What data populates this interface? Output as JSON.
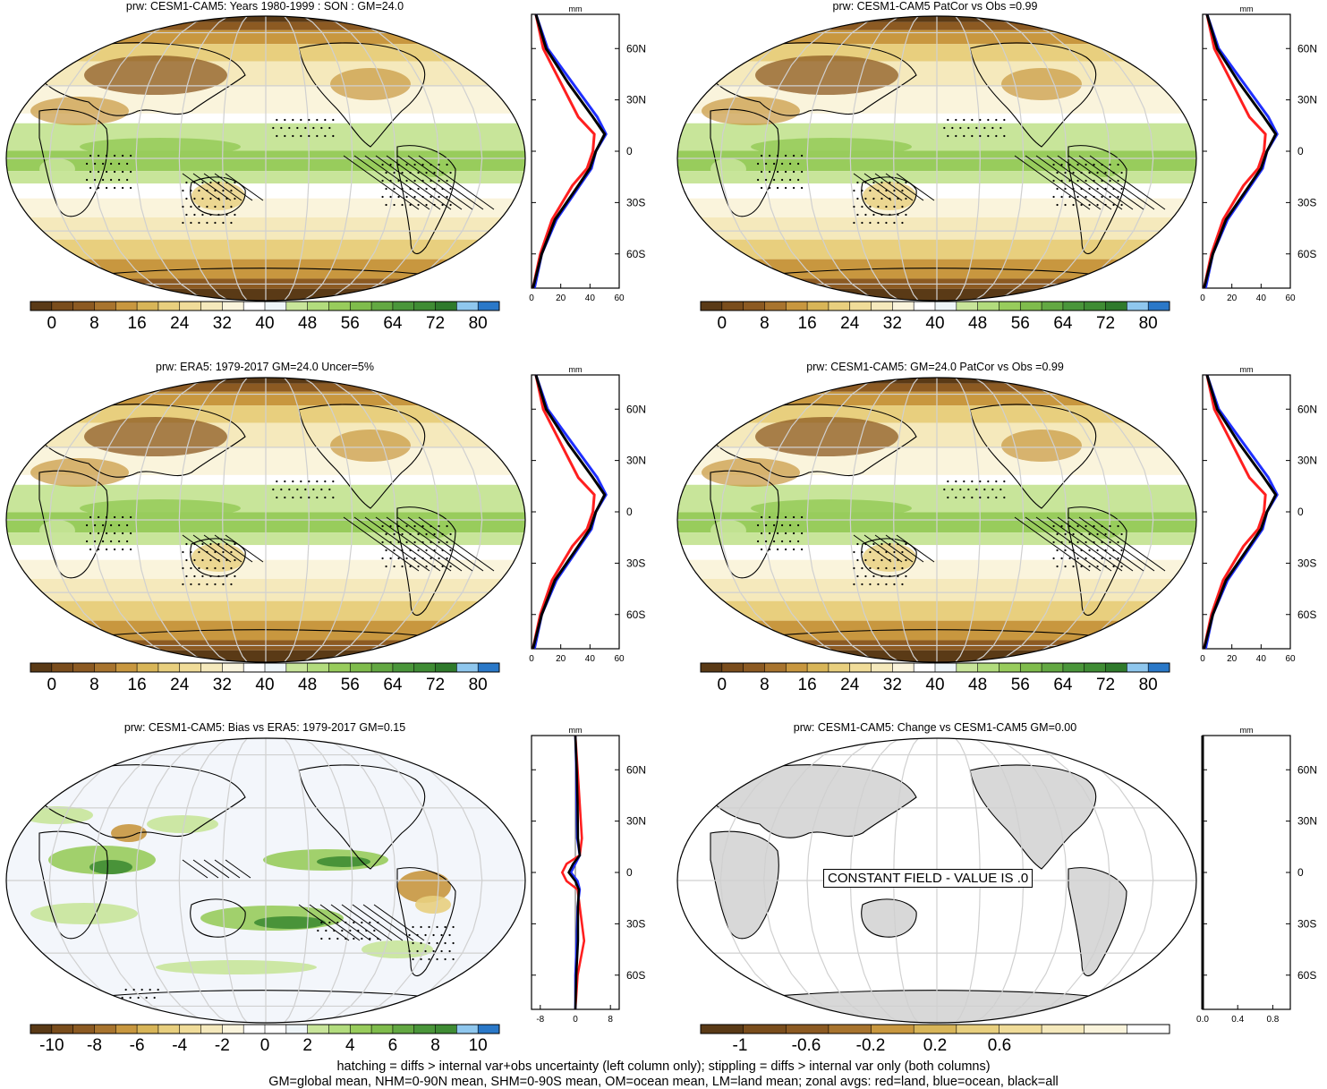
{
  "colors": {
    "brown_dark": "#5a3a16",
    "brown": "#8c5a22",
    "tan": "#c8973f",
    "yellow": "#e8cf7e",
    "cream": "#f5e9bc",
    "white": "#ffffff",
    "light_green": "#c8e59a",
    "green": "#98cc5c",
    "dark_green": "#3f8c34",
    "blue_light": "#8fc7ee",
    "blue": "#2a78c8",
    "zonal_land": "#ff1f1f",
    "zonal_ocean": "#1f2fff",
    "zonal_all": "#000000",
    "land_gray": "#d8d8d8"
  },
  "panels": [
    {
      "id": "p1",
      "title": "prw: CESM1-CAM5: Years 1980-1999 : SON : GM=24.0",
      "cbar": "abs",
      "zonal": "abs"
    },
    {
      "id": "p2",
      "title": "prw: CESM1-CAM5 PatCor vs Obs =0.99",
      "cbar": "abs",
      "zonal": "abs"
    },
    {
      "id": "p3",
      "title": "prw: ERA5: 1979-2017 GM=24.0 Uncer=5%",
      "cbar": "abs",
      "zonal": "abs"
    },
    {
      "id": "p4",
      "title": "prw: CESM1-CAM5: GM=24.0 PatCor vs Obs =0.99",
      "cbar": "abs",
      "zonal": "abs"
    },
    {
      "id": "p5",
      "title": "prw: CESM1-CAM5: Bias vs ERA5: 1979-2017  GM=0.15",
      "cbar": "bias",
      "zonal": "bias"
    },
    {
      "id": "p6",
      "title": "prw: CESM1-CAM5: Change vs CESM1-CAM5 GM=0.00",
      "cbar": "change",
      "zonal": "change",
      "constant_label": "CONSTANT FIELD - VALUE IS .0"
    }
  ],
  "colorbars": {
    "abs": {
      "labels": [
        "0",
        "8",
        "16",
        "24",
        "32",
        "40",
        "48",
        "56",
        "64",
        "72",
        "80"
      ]
    },
    "bias": {
      "labels": [
        "-10",
        "-8",
        "-6",
        "-4",
        "-2",
        "0",
        "2",
        "4",
        "6",
        "8",
        "10"
      ]
    },
    "change": {
      "labels": [
        "-1",
        "-0.6",
        "-0.2",
        "0.2",
        "0.6"
      ]
    }
  },
  "zonal_axes": {
    "unit": "mm",
    "lat_ticks": [
      "60N",
      "30N",
      "0",
      "30S",
      "60S"
    ],
    "abs_x_ticks": [
      "0",
      "20",
      "40",
      "60"
    ],
    "bias_x_ticks": [
      "-8",
      "0",
      "8"
    ],
    "change_x_ticks": [
      "0.0",
      "0.4",
      "0.8"
    ]
  },
  "chart_data": {
    "type": "line",
    "title": "",
    "xlabel": "mm",
    "ylabel": "",
    "series": [
      {
        "name": "land",
        "color": "red",
        "lat": [
          80,
          60,
          40,
          20,
          10,
          0,
          -10,
          -20,
          -40,
          -60,
          -80
        ],
        "values": [
          3,
          8,
          20,
          32,
          43,
          42,
          38,
          28,
          14,
          6,
          1
        ]
      },
      {
        "name": "ocean",
        "color": "blue",
        "lat": [
          80,
          60,
          40,
          20,
          10,
          0,
          -10,
          -20,
          -40,
          -60,
          -80
        ],
        "values": [
          3,
          11,
          28,
          45,
          51,
          44,
          41,
          33,
          17,
          7,
          2
        ]
      },
      {
        "name": "all",
        "color": "black",
        "lat": [
          80,
          60,
          40,
          20,
          10,
          0,
          -10,
          -20,
          -40,
          -60,
          -80
        ],
        "values": [
          3,
          10,
          25,
          42,
          50,
          44,
          40,
          32,
          16,
          7,
          1
        ]
      }
    ],
    "ylim": [
      -80,
      80
    ],
    "xlim": [
      0,
      60
    ]
  },
  "footer": {
    "line1": "hatching = diffs > internal var+obs uncertainty (left column only); stippling = diffs > internal var only (both columns)",
    "line2": "GM=global mean, NHM=0-90N mean, SHM=0-90S mean, OM=ocean mean, LM=land mean; zonal avgs: red=land, blue=ocean, black=all"
  }
}
